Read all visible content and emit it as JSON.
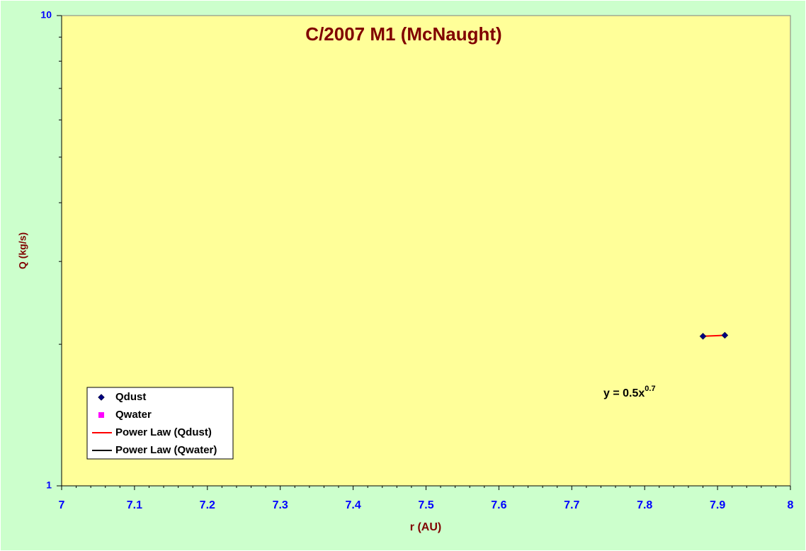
{
  "chart_data": {
    "type": "scatter",
    "title": "C/2007 M1 (McNaught)",
    "x_label": "r (AU)",
    "y_label": "Q (kg/s)",
    "xlim": [
      7,
      8
    ],
    "xticks": [
      7,
      7.1,
      7.2,
      7.3,
      7.4,
      7.5,
      7.6,
      7.7,
      7.8,
      7.9,
      8
    ],
    "ylim": [
      1,
      10
    ],
    "yticks": [
      1,
      10
    ],
    "y_log": true,
    "series": [
      {
        "name": "Qdust",
        "color": "#000080",
        "marker": "diamond",
        "x": [
          7.88,
          7.91
        ],
        "values": [
          2.08,
          2.09
        ]
      },
      {
        "name": "Qwater",
        "color": "#ff00ff",
        "marker": "square",
        "x": [],
        "values": []
      }
    ],
    "trendlines": [
      {
        "name": "Power Law (Qdust)",
        "color": "#ff0000"
      },
      {
        "name": "Power Law (Qwater)",
        "color": "#000000"
      }
    ],
    "equation": "y = 0.5x",
    "equation_exponent": "0.7"
  }
}
